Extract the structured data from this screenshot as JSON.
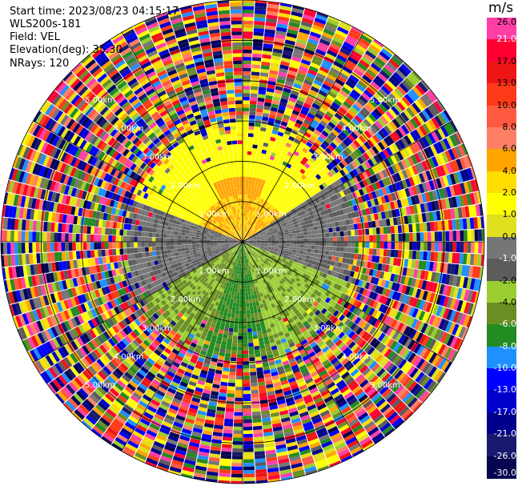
{
  "header": {
    "start_time": "Start time: 2023/08/23 04:15:17",
    "site": "WLS200s-181",
    "field": "Field: VEL",
    "elevation": "Elevation(deg): 35.30",
    "nrays": "NRays: 120"
  },
  "colorbar": {
    "unit": "m/s",
    "ticks": [
      "26.0",
      "21.0",
      "17.0",
      "13.0",
      "10.0",
      "8.0",
      "6.0",
      "4.0",
      "2.0",
      "1.0",
      "0.0",
      "-1.0",
      "-2.0",
      "-4.0",
      "-6.0",
      "-8.0",
      "-10.0",
      "-13.0",
      "-17.0",
      "-21.0",
      "-26.0",
      "-30.0"
    ],
    "colors": [
      "#ff3fa6",
      "#ff0033",
      "#ee1515",
      "#ff3a18",
      "#ff5a40",
      "#ff7f66",
      "#ffa500",
      "#ffdd00",
      "#ffff00",
      "#e0e020",
      "#767676",
      "#5c5c5c",
      "#9acd32",
      "#6b8e23",
      "#228b22",
      "#1e90ff",
      "#0000ff",
      "#0000cd",
      "#00008b",
      "#191970",
      "#050550"
    ],
    "tick_text_colors": [
      "#000000",
      "#ffffff",
      "#000000",
      "#000000",
      "#000000",
      "#000000",
      "#000000",
      "#000000",
      "#000000",
      "#000000",
      "#000000",
      "#ffffff",
      "#000000",
      "#000000",
      "#ffffff",
      "#ffffff",
      "#ffffff",
      "#ffffff",
      "#ffffff",
      "#ffffff",
      "#ffffff",
      "#ffffff"
    ]
  },
  "chart_data": {
    "type": "ppi",
    "field": "VEL",
    "unit": "m/s",
    "nrays": 120,
    "elevation_deg": 35.3,
    "max_range_km": 6.0,
    "range_rings_km": [
      1,
      2,
      3,
      4,
      5,
      6
    ],
    "range_labels": [
      "1.00km",
      "2.00km",
      "3.00km",
      "4.00km",
      "5.00km"
    ],
    "spokes_deg": [
      0,
      30,
      60,
      90,
      120,
      150,
      180,
      210,
      240,
      270,
      300,
      330
    ],
    "vmin": -30.0,
    "vmax": 30.0
  }
}
